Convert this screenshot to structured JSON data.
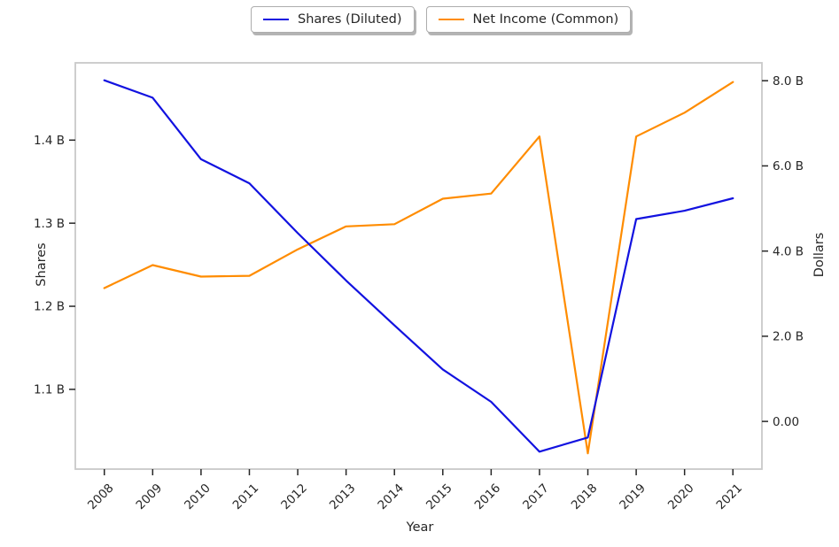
{
  "legend": {
    "items": [
      {
        "label": "Shares (Diluted)",
        "color": "#1212e0"
      },
      {
        "label": "Net Income (Common)",
        "color": "#ff8c00"
      }
    ]
  },
  "chart_data": {
    "type": "line",
    "x": [
      2008,
      2009,
      2010,
      2011,
      2012,
      2013,
      2014,
      2015,
      2016,
      2017,
      2018,
      2019,
      2020,
      2021
    ],
    "x_axis": {
      "label": "Year",
      "lim": [
        2007.4,
        2021.6
      ],
      "ticks": [
        {
          "v": 2008,
          "label": "2008"
        },
        {
          "v": 2009,
          "label": "2009"
        },
        {
          "v": 2010,
          "label": "2010"
        },
        {
          "v": 2011,
          "label": "2011"
        },
        {
          "v": 2012,
          "label": "2012"
        },
        {
          "v": 2013,
          "label": "2013"
        },
        {
          "v": 2014,
          "label": "2014"
        },
        {
          "v": 2015,
          "label": "2015"
        },
        {
          "v": 2016,
          "label": "2016"
        },
        {
          "v": 2017,
          "label": "2017"
        },
        {
          "v": 2018,
          "label": "2018"
        },
        {
          "v": 2019,
          "label": "2019"
        },
        {
          "v": 2020,
          "label": "2020"
        },
        {
          "v": 2021,
          "label": "2021"
        }
      ]
    },
    "left_axis": {
      "label": "Shares",
      "unit": "B",
      "lim": [
        1.004,
        1.493
      ],
      "ticks": [
        {
          "v": 1.1,
          "label": "1.1 B"
        },
        {
          "v": 1.2,
          "label": "1.2 B"
        },
        {
          "v": 1.3,
          "label": "1.3 B"
        },
        {
          "v": 1.4,
          "label": "1.4 B"
        }
      ]
    },
    "right_axis": {
      "label": "Dollars",
      "unit": "B",
      "lim": [
        -1.12,
        8.42
      ],
      "ticks": [
        {
          "v": 0,
          "label": "0.00"
        },
        {
          "v": 2,
          "label": "2.0 B"
        },
        {
          "v": 4,
          "label": "4.0 B"
        },
        {
          "v": 6,
          "label": "6.0 B"
        },
        {
          "v": 8,
          "label": "8.0 B"
        }
      ]
    },
    "series": [
      {
        "key": "shares-diluted",
        "name": "Shares (Diluted)",
        "axis": "left",
        "color": "#1212e0",
        "values": [
          1.472,
          1.451,
          1.377,
          1.348,
          1.288,
          1.231,
          1.177,
          1.124,
          1.085,
          1.025,
          1.042,
          1.305,
          1.315,
          1.33
        ]
      },
      {
        "key": "net-income-common",
        "name": "Net Income (Common)",
        "axis": "right",
        "color": "#ff8c00",
        "values": [
          3.13,
          3.67,
          3.4,
          3.42,
          4.04,
          4.58,
          4.63,
          5.23,
          5.35,
          6.69,
          -0.75,
          6.69,
          7.25,
          7.97
        ]
      }
    ],
    "grid": false,
    "legend_position": "top-center"
  }
}
